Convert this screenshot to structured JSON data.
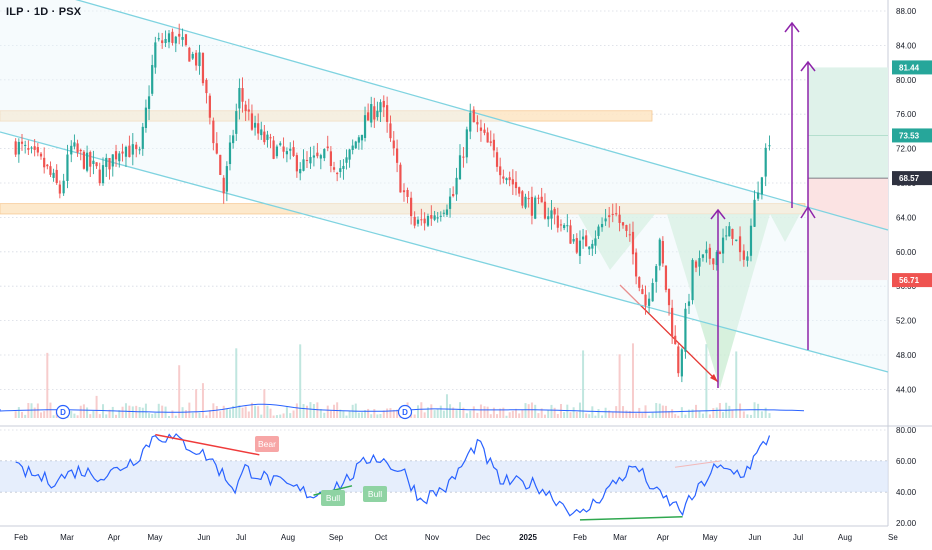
{
  "header": {
    "symbol_label": "ILP · 1D · PSX"
  },
  "colors": {
    "up": "#26a69a",
    "down": "#ef5350",
    "channel": "#7fd3e0",
    "zone_fill": "#fde7c7",
    "zone_border": "#f7c58a",
    "pattern": "#c9ecd2",
    "arrow": "#8e24aa",
    "rsi_line": "#2962ff",
    "rsi_band": "#dbe7fb",
    "tp_zone": "#dff2ea",
    "sl_zone": "#fbe3e3",
    "div_bear": "#ef3b3b",
    "div_bull": "#2fa84f",
    "grid": "#d6dae3"
  },
  "price_axis": {
    "ticks": [
      "88.00",
      "84.00",
      "80.00",
      "76.00",
      "72.00",
      "68.00",
      "64.00",
      "60.00",
      "56.00",
      "52.00",
      "48.00",
      "44.00"
    ],
    "badges": [
      {
        "label": "81.44",
        "value": 81.44,
        "color": "#26a69a"
      },
      {
        "label": "73.53",
        "value": 73.53,
        "color": "#26a69a"
      },
      {
        "label": "68.57",
        "value": 68.57,
        "color": "#2f3240"
      },
      {
        "label": "56.71",
        "value": 56.71,
        "color": "#ef5350"
      }
    ]
  },
  "rsi_axis": {
    "ticks": [
      "80.00",
      "60.00",
      "40.00",
      "20.00"
    ]
  },
  "time_axis": {
    "labels": [
      "Feb",
      "Mar",
      "Apr",
      "May",
      "Jun",
      "Jul",
      "Aug",
      "Sep",
      "Oct",
      "Nov",
      "Dec",
      "2025",
      "Feb",
      "Mar",
      "Apr",
      "May",
      "Jun",
      "Jul",
      "Aug",
      "Se"
    ]
  },
  "annotations": {
    "bear_label": "Bear",
    "bull_label_1": "Bull",
    "bull_label_2": "Bull",
    "dividend_label": "D"
  },
  "chart_data": {
    "type": "candlestick",
    "symbol": "ILP",
    "interval": "1D",
    "exchange": "PSX",
    "ylim": [
      44,
      88
    ],
    "rsi_ylim": [
      20,
      80
    ],
    "key_levels": [
      81.44,
      73.53,
      68.57,
      56.71
    ],
    "resistance_zone": [
      75.2,
      76.4
    ],
    "support_zone": [
      64.4,
      65.6
    ],
    "close_path": [
      [
        "2024-01-26",
        72.5
      ],
      [
        "2024-02-15",
        70.0
      ],
      [
        "2024-02-26",
        67.0
      ],
      [
        "2024-03-05",
        72.0
      ],
      [
        "2024-03-25",
        69.0
      ],
      [
        "2024-04-10",
        72.5
      ],
      [
        "2024-04-22",
        71.0
      ],
      [
        "2024-05-03",
        84.0
      ],
      [
        "2024-05-15",
        85.0
      ],
      [
        "2024-06-03",
        82.0
      ],
      [
        "2024-06-20",
        67.0
      ],
      [
        "2024-07-01",
        78.5
      ],
      [
        "2024-07-12",
        74.0
      ],
      [
        "2024-07-25",
        72.0
      ],
      [
        "2024-08-15",
        70.0
      ],
      [
        "2024-09-01",
        71.0
      ],
      [
        "2024-09-12",
        69.5
      ],
      [
        "2024-09-25",
        74.5
      ],
      [
        "2024-10-08",
        77.5
      ],
      [
        "2024-10-22",
        68.0
      ],
      [
        "2024-11-01",
        63.0
      ],
      [
        "2024-11-15",
        64.5
      ],
      [
        "2024-11-28",
        66.5
      ],
      [
        "2024-12-10",
        75.5
      ],
      [
        "2024-12-20",
        73.0
      ],
      [
        "2024-12-31",
        70.0
      ],
      [
        "2025-01-20",
        65.5
      ],
      [
        "2025-02-05",
        64.5
      ],
      [
        "2025-02-25",
        60.5
      ],
      [
        "2025-03-10",
        62.5
      ],
      [
        "2025-03-20",
        65.0
      ],
      [
        "2025-04-01",
        61.0
      ],
      [
        "2025-04-12",
        54.0
      ],
      [
        "2025-04-22",
        60.5
      ],
      [
        "2025-05-05",
        46.5
      ],
      [
        "2025-05-15",
        58.0
      ],
      [
        "2025-06-01",
        60.0
      ],
      [
        "2025-06-12",
        62.5
      ],
      [
        "2025-06-20",
        58.0
      ],
      [
        "2025-06-30",
        68.0
      ],
      [
        "2025-07-08",
        73.5
      ]
    ],
    "rsi_path": [
      [
        "2024-01-26",
        55
      ],
      [
        "2024-02-20",
        47
      ],
      [
        "2024-03-10",
        54
      ],
      [
        "2024-03-28",
        50
      ],
      [
        "2024-04-20",
        62
      ],
      [
        "2024-05-03",
        77
      ],
      [
        "2024-05-20",
        73
      ],
      [
        "2024-06-10",
        62
      ],
      [
        "2024-06-28",
        42
      ],
      [
        "2024-07-05",
        55
      ],
      [
        "2024-07-25",
        47
      ],
      [
        "2024-08-22",
        38
      ],
      [
        "2024-09-12",
        46
      ],
      [
        "2024-10-03",
        64
      ],
      [
        "2024-10-25",
        52
      ],
      [
        "2024-11-05",
        35
      ],
      [
        "2024-11-25",
        44
      ],
      [
        "2024-12-15",
        72
      ],
      [
        "2024-12-31",
        47
      ],
      [
        "2025-01-25",
        45
      ],
      [
        "2025-02-25",
        24
      ],
      [
        "2025-03-20",
        45
      ],
      [
        "2025-04-05",
        57
      ],
      [
        "2025-04-20",
        39
      ],
      [
        "2025-05-08",
        28
      ],
      [
        "2025-05-30",
        55
      ],
      [
        "2025-06-20",
        52
      ],
      [
        "2025-07-08",
        76
      ]
    ],
    "divergences": [
      {
        "type": "Bear",
        "from": [
          "2024-05-03",
          77
        ],
        "to": [
          "2024-07-15",
          64
        ]
      },
      {
        "type": "Bull",
        "from": [
          "2024-08-22",
          38
        ],
        "to": [
          "2024-09-18",
          44
        ]
      },
      {
        "type": "Bull",
        "from": [
          "2025-02-25",
          22
        ],
        "to": [
          "2025-05-08",
          24
        ]
      }
    ]
  }
}
